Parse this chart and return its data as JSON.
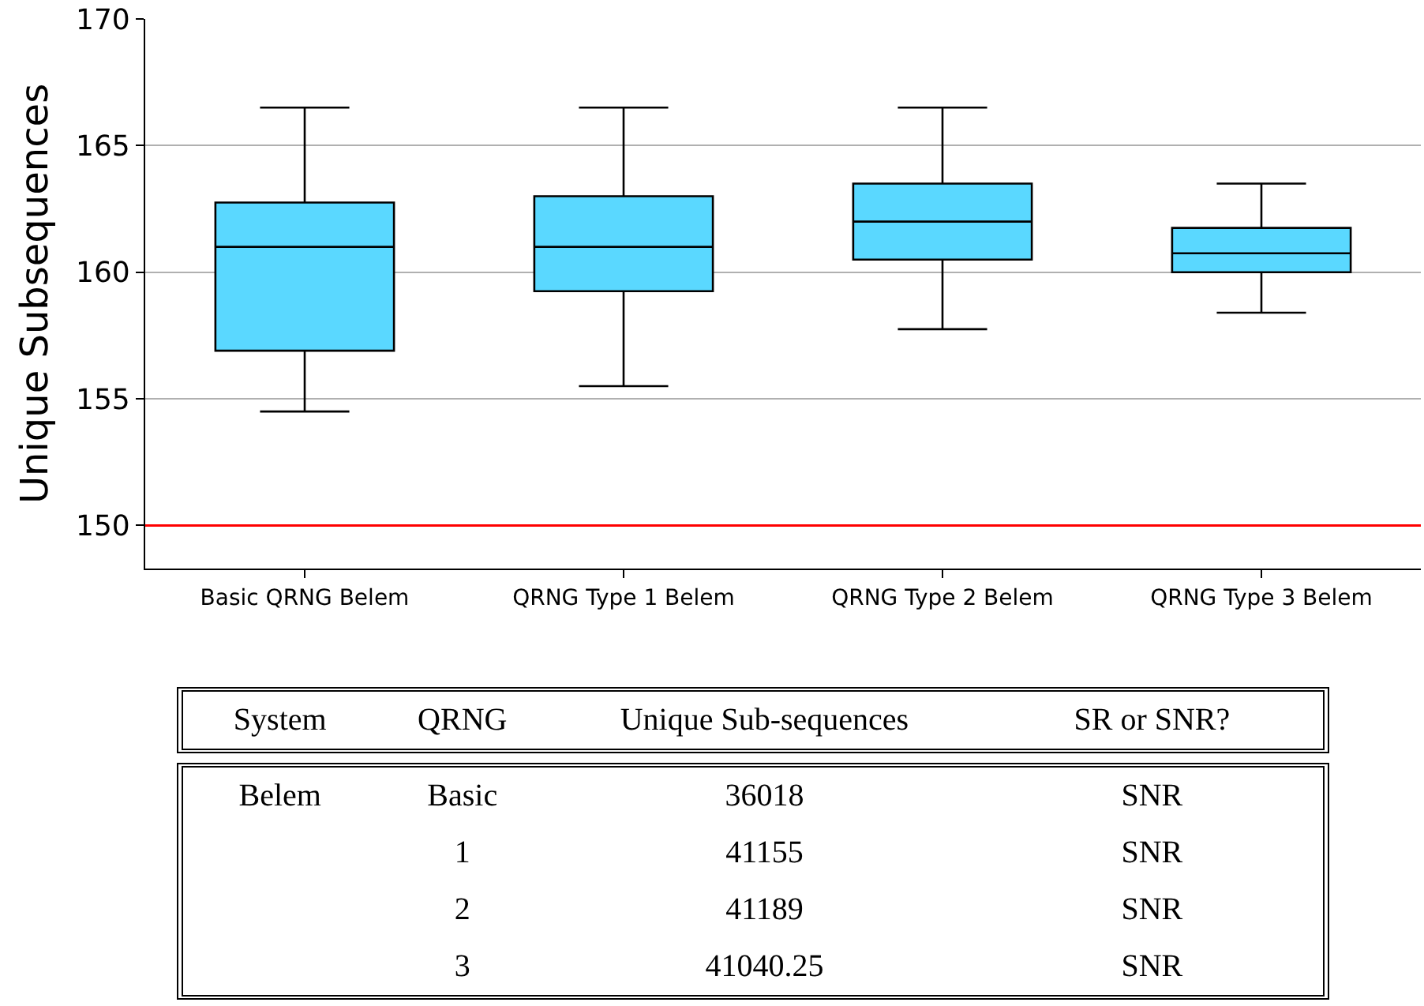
{
  "chart_data": [
    {
      "type": "box",
      "ylabel": "Unique Subsequences",
      "categories": [
        "Basic QRNG Belem",
        "QRNG Type 1 Belem",
        "QRNG Type 2 Belem",
        "QRNG Type 3 Belem"
      ],
      "color": "#5ad8ff",
      "boxes": [
        {
          "low": 154.5,
          "q1": 156.9,
          "median": 161,
          "q3": 162.75,
          "high": 166.5
        },
        {
          "low": 155.5,
          "q1": 159.25,
          "median": 161,
          "q3": 163,
          "high": 166.5
        },
        {
          "low": 157.75,
          "q1": 160.5,
          "median": 162,
          "q3": 163.5,
          "high": 166.5
        },
        {
          "low": 158.4,
          "q1": 160,
          "median": 160.75,
          "q3": 161.75,
          "high": 163.5
        }
      ],
      "ylim": [
        148.3,
        170
      ],
      "yticks": [
        150,
        155,
        160,
        165,
        170
      ],
      "grid": "y",
      "legend": false,
      "ref_lines": [
        {
          "axis": "y",
          "value": 150,
          "color": "#ff0000"
        }
      ]
    },
    {
      "type": "other",
      "categories": [
        "System",
        "QRNG",
        "Unique Sub-sequences",
        "SR or SNR?"
      ],
      "cell_labels": [
        [
          "Belem",
          "Basic",
          "36018",
          "SNR"
        ],
        [
          null,
          "1",
          "41155",
          "SNR"
        ],
        [
          null,
          "2",
          "41189",
          "SNR"
        ],
        [
          null,
          "3",
          "41040.25",
          "SNR"
        ]
      ]
    }
  ]
}
